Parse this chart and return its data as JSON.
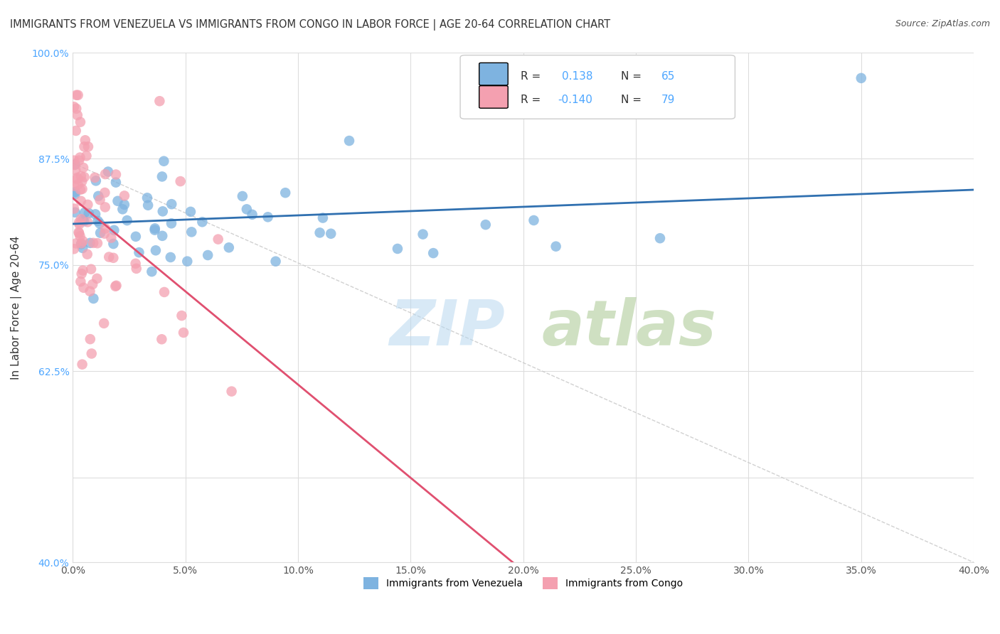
{
  "title": "IMMIGRANTS FROM VENEZUELA VS IMMIGRANTS FROM CONGO IN LABOR FORCE | AGE 20-64 CORRELATION CHART",
  "source": "Source: ZipAtlas.com",
  "ylabel": "In Labor Force | Age 20-64",
  "xlim": [
    0.0,
    40.0
  ],
  "ylim": [
    40.0,
    100.0
  ],
  "xticks": [
    0.0,
    5.0,
    10.0,
    15.0,
    20.0,
    25.0,
    30.0,
    35.0,
    40.0
  ],
  "yticks": [
    40.0,
    50.0,
    62.5,
    75.0,
    87.5,
    100.0
  ],
  "ytick_labels": [
    "40.0%",
    "",
    "62.5%",
    "75.0%",
    "87.5%",
    "100.0%"
  ],
  "xtick_labels": [
    "0.0%",
    "5.0%",
    "10.0%",
    "15.0%",
    "20.0%",
    "25.0%",
    "30.0%",
    "35.0%",
    "40.0%"
  ],
  "venezuela_color": "#7eb3e0",
  "congo_color": "#f4a0b0",
  "venezuela_R": 0.138,
  "venezuela_N": 65,
  "congo_R": -0.14,
  "congo_N": 79,
  "trend_blue": "#3070b0",
  "trend_pink": "#e05070",
  "background_color": "#ffffff"
}
